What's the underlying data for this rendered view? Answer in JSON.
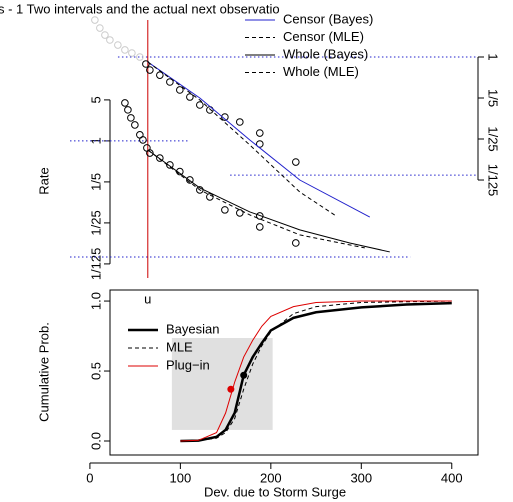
{
  "title": "s - 1    Two intervals and the actual next observatio",
  "chart_data": [
    {
      "type": "line",
      "log_y": true,
      "ylabel": "Rate",
      "legend": "top-right",
      "xlim": [
        -22,
        429
      ],
      "ylim": [
        0.0063,
        140
      ],
      "y2lim": [
        0.000234,
        5.2
      ],
      "yticks": [
        {
          "value": 0.008,
          "label": "1/125"
        },
        {
          "value": 0.04,
          "label": "1/25"
        },
        {
          "value": 0.2,
          "label": "1/5"
        },
        1,
        5
      ],
      "y2ticks": [
        {
          "value": 0.008,
          "label": "1/125"
        },
        {
          "value": 0.04,
          "label": "1/25"
        },
        {
          "value": 0.2,
          "label": "1/5"
        },
        1
      ],
      "threshold": {
        "value": 64,
        "label": "u",
        "color": "#cc0000"
      },
      "series": [
        {
          "name": "Censor (Bayes)",
          "color": "#2222cc",
          "dash": false,
          "axis": "y2",
          "x": [
            64.1,
            121.5,
            176.8,
            232.0,
            309.4
          ],
          "values": [
            0.82,
            0.2,
            0.0385,
            0.008,
            0.00187
          ]
        },
        {
          "name": "Censor (MLE)",
          "color": "#000000",
          "dash": true,
          "axis": "y2",
          "x": [
            64.1,
            121.5,
            176.8,
            232.0,
            270.7
          ],
          "values": [
            0.82,
            0.185,
            0.0316,
            0.005,
            0.00202
          ]
        },
        {
          "name": "Whole (Bayes)",
          "color": "#000000",
          "dash": false,
          "axis": "y",
          "x": [
            64.1,
            121.5,
            176.8,
            232.0,
            287.3,
            331.5
          ],
          "values": [
            0.7,
            0.158,
            0.0616,
            0.0304,
            0.0182,
            0.0128
          ]
        },
        {
          "name": "Whole (MLE)",
          "color": "#000000",
          "dash": true,
          "axis": "y",
          "x": [
            64.1,
            121.5,
            176.8,
            232.0,
            303.9
          ],
          "values": [
            0.7,
            0.146,
            0.0547,
            0.025,
            0.015
          ]
        }
      ],
      "points": [
        {
          "color": "#000000",
          "axis": "y",
          "x": [
            38.7,
            42.0,
            45.3,
            49.7,
            55.2,
            58.6,
            63.0,
            66.3,
            77.3,
            88.4,
            99.4,
            110.5,
            121.5,
            132.6,
            149.2,
            165.7,
            187.8,
            187.8,
            227.6
          ],
          "values": [
            4.44,
            3.38,
            2.47,
            1.87,
            1.27,
            1.04,
            0.76,
            0.62,
            0.51,
            0.39,
            0.3,
            0.216,
            0.146,
            0.111,
            0.0667,
            0.0592,
            0.0526,
            0.0342,
            0.0182
          ]
        },
        {
          "color": "#000000",
          "axis": "y2",
          "x": [
            61.9,
            66.3,
            77.3,
            88.4,
            99.4,
            110.5,
            121.5,
            132.6,
            149.2,
            165.7,
            187.8,
            187.8,
            227.6
          ],
          "values": [
            0.76,
            0.6,
            0.49,
            0.375,
            0.274,
            0.208,
            0.152,
            0.125,
            0.0948,
            0.078,
            0.0506,
            0.0329,
            0.0162
          ]
        },
        {
          "color": "#cccccc",
          "axis": "y2",
          "x": [
            5.5,
            11.0,
            16.6,
            22.1,
            30.9,
            38.7,
            46.4,
            55.2
          ],
          "values": [
            4.27,
            3.12,
            2.37,
            1.95,
            1.6,
            1.32,
            1.17,
            1.0
          ]
        }
      ],
      "hlines": [
        {
          "value": 1,
          "axis": "y2",
          "color": "#2222cc",
          "x": [
            31,
            429
          ]
        },
        {
          "value": 1,
          "axis": "y",
          "color": "#2222cc",
          "x": [
            -22,
            110
          ]
        },
        {
          "value": 0.0097,
          "axis": "y2",
          "color": "#2222cc",
          "x": [
            155,
            429
          ]
        },
        {
          "value": 0.0105,
          "axis": "y",
          "color": "#2222cc",
          "x": [
            -22,
            354
          ]
        }
      ]
    },
    {
      "type": "line",
      "log_y": false,
      "xlabel": "Dev. due to Storm Surge",
      "ylabel": "Cumulative Prob.",
      "legend": "top-left",
      "xlim": [
        -22,
        429
      ],
      "ylim": [
        -0.1,
        1.079
      ],
      "xticks": [
        0,
        100,
        200,
        300,
        400
      ],
      "yticks": [
        {
          "value": 0,
          "label": "0.0"
        },
        {
          "value": 0.5,
          "label": "0.5"
        },
        {
          "value": 1,
          "label": "1.0"
        }
      ],
      "interval": {
        "x": [
          90.6,
          202
        ],
        "y": [
          0.079,
          0.736
        ],
        "color": "#e0e0e0"
      },
      "series": [
        {
          "name": "Bayesian",
          "color": "#000000",
          "width": 2.5,
          "dash": false,
          "x": [
            100,
            120,
            140,
            150,
            160,
            170,
            180,
            190,
            200,
            225,
            250,
            300,
            350,
            400
          ],
          "values": [
            0,
            0.003,
            0.03,
            0.08,
            0.2,
            0.47,
            0.6,
            0.7,
            0.79,
            0.88,
            0.92,
            0.955,
            0.975,
            0.985
          ]
        },
        {
          "name": "MLE",
          "color": "#000000",
          "width": 1,
          "dash": true,
          "x": [
            100,
            120,
            140,
            150,
            160,
            170,
            180,
            190,
            200,
            225,
            250,
            300,
            350,
            400
          ],
          "values": [
            0,
            0.002,
            0.02,
            0.06,
            0.16,
            0.37,
            0.55,
            0.68,
            0.78,
            0.91,
            0.96,
            0.99,
            0.995,
            1.0
          ]
        },
        {
          "name": "Plug−in",
          "color": "#dd0000",
          "width": 1,
          "dash": false,
          "x": [
            100,
            120,
            140,
            150,
            160,
            170,
            180,
            190,
            200,
            225,
            250,
            300,
            350,
            400
          ],
          "values": [
            0,
            0.005,
            0.06,
            0.2,
            0.42,
            0.6,
            0.72,
            0.82,
            0.89,
            0.96,
            0.99,
            1.0,
            1.0,
            1.0
          ]
        }
      ],
      "points": [
        {
          "color": "#dd0000",
          "x": [
            155.8
          ],
          "values": [
            0.37
          ]
        },
        {
          "color": "#000000",
          "x": [
            170
          ],
          "values": [
            0.47
          ]
        }
      ]
    }
  ]
}
